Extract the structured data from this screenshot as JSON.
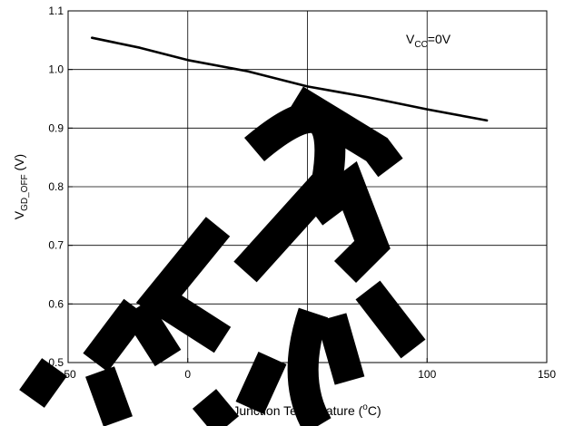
{
  "chart_data": {
    "type": "line",
    "xlabel": {
      "main": "Junction Temperature (",
      "sup": "o",
      "tail": "C)"
    },
    "ylabel": {
      "main": "V",
      "sub": "GD_OFF",
      "tail": " (V)"
    },
    "xlim": [
      -50,
      150
    ],
    "ylim": [
      0.5,
      1.1
    ],
    "x_ticks": [
      -50,
      0,
      50,
      100,
      150
    ],
    "x_tick_labels": [
      "-50",
      "0",
      "50",
      "100",
      "150"
    ],
    "y_ticks": [
      0.5,
      0.6,
      0.7,
      0.8,
      0.9,
      1.0,
      1.1
    ],
    "y_tick_labels": [
      "0.5",
      "0.6",
      "0.7",
      "0.8",
      "0.9",
      "1.0",
      "1.1"
    ],
    "grid": true,
    "annotation": {
      "main": "V",
      "sub": "CC",
      "tail": "=0V"
    },
    "series": [
      {
        "x": [
          -40,
          -20,
          0,
          25,
          50,
          75,
          100,
          125
        ],
        "y": [
          1.054,
          1.037,
          1.016,
          0.997,
          0.971,
          0.953,
          0.932,
          0.913
        ]
      }
    ]
  }
}
